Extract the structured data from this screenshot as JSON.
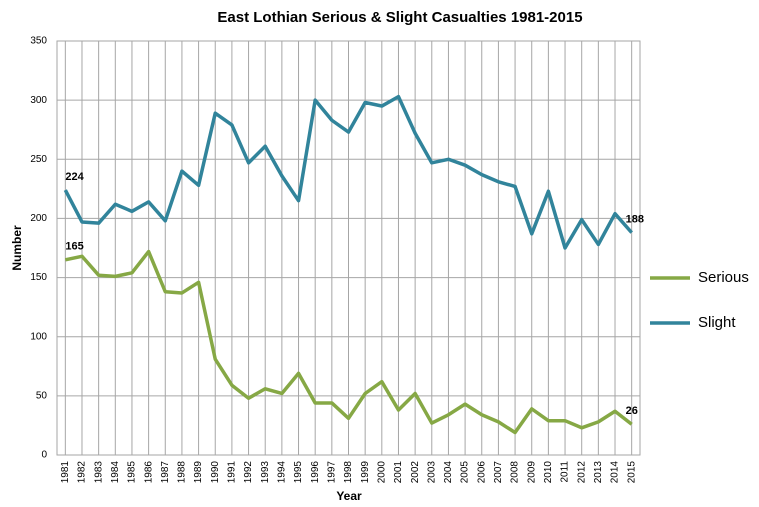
{
  "chart_data": {
    "type": "line",
    "title": "East Lothian Serious & Slight Casualties 1981-2015",
    "x_label": "Year",
    "y_label": "Number",
    "categories": [
      "1981",
      "1982",
      "1983",
      "1984",
      "1985",
      "1986",
      "1987",
      "1988",
      "1989",
      "1990",
      "1991",
      "1992",
      "1993",
      "1994",
      "1995",
      "1996",
      "1997",
      "1998",
      "1999",
      "2000",
      "2001",
      "2002",
      "2003",
      "2004",
      "2005",
      "2006",
      "2007",
      "2008",
      "2009",
      "2010",
      "2011",
      "2012",
      "2013",
      "2014",
      "2015"
    ],
    "series": [
      {
        "name": "Serious",
        "color": "#86a845",
        "values": [
          165,
          168,
          152,
          151,
          154,
          172,
          138,
          137,
          146,
          81,
          59,
          48,
          56,
          52,
          69,
          44,
          44,
          31,
          52,
          62,
          38,
          52,
          27,
          34,
          43,
          34,
          28,
          19,
          39,
          29,
          29,
          23,
          28,
          37,
          26
        ]
      },
      {
        "name": "Slight",
        "color": "#31849b",
        "values": [
          224,
          197,
          196,
          212,
          206,
          214,
          198,
          240,
          228,
          289,
          279,
          247,
          261,
          236,
          215,
          300,
          283,
          273,
          298,
          295,
          303,
          272,
          247,
          250,
          245,
          237,
          231,
          227,
          187,
          223,
          175,
          199,
          178,
          204,
          188
        ]
      }
    ],
    "ylim": [
      0,
      350
    ],
    "yticks": [
      0,
      50,
      100,
      150,
      200,
      250,
      300,
      350
    ],
    "grid": true,
    "legend": "right"
  }
}
